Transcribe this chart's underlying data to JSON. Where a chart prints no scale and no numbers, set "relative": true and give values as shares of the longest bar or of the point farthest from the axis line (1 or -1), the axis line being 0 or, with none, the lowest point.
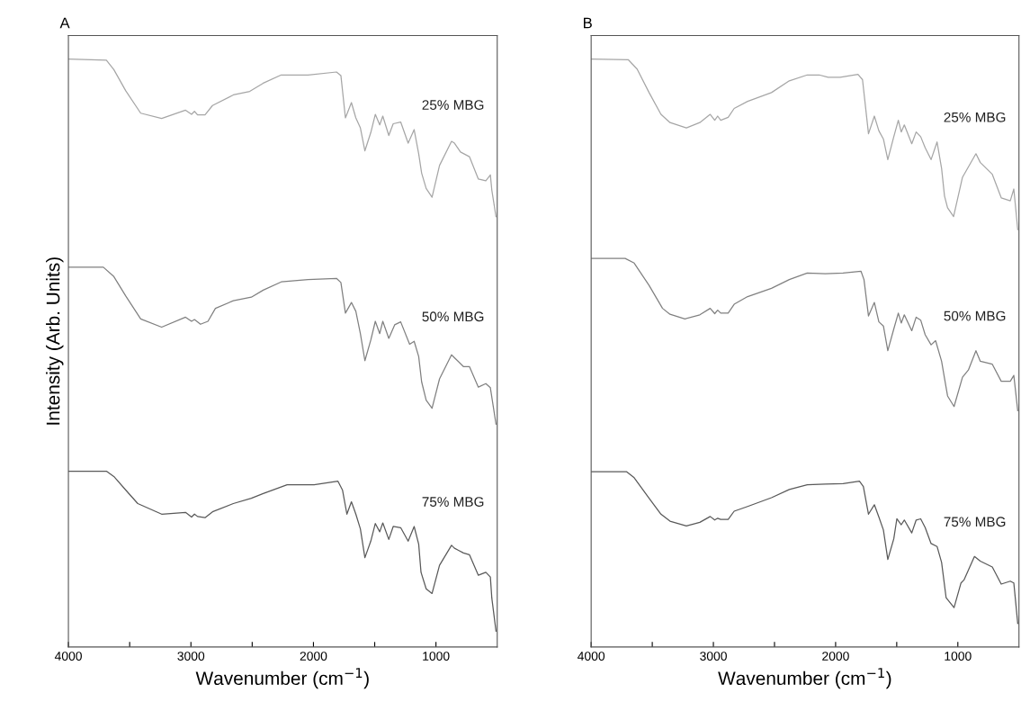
{
  "chart_data": [
    {
      "type": "line",
      "title": "A",
      "xlabel": "Wavenumber (cm$^{−1}$)",
      "ylabel": "Intensity (Arb. Units)",
      "relative": true,
      "tick_labels": "x",
      "xlim": [
        4000,
        500
      ],
      "xticks": [
        4000,
        {
          "value": 3500,
          "label": null
        },
        3000,
        {
          "value": 2500,
          "label": null
        },
        2000,
        {
          "value": 1500,
          "label": null
        },
        1000
      ],
      "series": [
        {
          "name": "25% MBG",
          "color": "#a6a6a6",
          "x": [
            4000,
            3690,
            3629,
            3532,
            3410,
            3239,
            3044,
            2995,
            2971,
            2946,
            2885,
            2824,
            2654,
            2520,
            2410,
            2263,
            2044,
            1812,
            1776,
            1739,
            1690,
            1654,
            1617,
            1580,
            1532,
            1495,
            1459,
            1434,
            1385,
            1349,
            1288,
            1227,
            1178,
            1141,
            1117,
            1080,
            1032,
            971,
            873,
            849,
            800,
            727,
            654,
            593,
            556,
            544,
            510
          ],
          "values": [
            1.0,
            0.998,
            0.982,
            0.946,
            0.908,
            0.899,
            0.913,
            0.906,
            0.911,
            0.905,
            0.905,
            0.921,
            0.939,
            0.945,
            0.959,
            0.973,
            0.973,
            0.978,
            0.972,
            0.9,
            0.926,
            0.9,
            0.883,
            0.844,
            0.875,
            0.906,
            0.888,
            0.903,
            0.87,
            0.89,
            0.893,
            0.857,
            0.88,
            0.839,
            0.806,
            0.78,
            0.765,
            0.819,
            0.86,
            0.857,
            0.842,
            0.834,
            0.796,
            0.793,
            0.803,
            0.777,
            0.732
          ]
        },
        {
          "name": "50% MBG",
          "color": "#808080",
          "x": [
            4000,
            3715,
            3629,
            3532,
            3410,
            3239,
            3044,
            2995,
            2971,
            2922,
            2861,
            2800,
            2654,
            2507,
            2410,
            2263,
            2044,
            1812,
            1776,
            1739,
            1690,
            1654,
            1617,
            1580,
            1532,
            1495,
            1459,
            1434,
            1385,
            1337,
            1288,
            1215,
            1178,
            1141,
            1117,
            1080,
            1032,
            971,
            873,
            849,
            776,
            727,
            654,
            593,
            556,
            510
          ],
          "values": [
            0.646,
            0.646,
            0.63,
            0.597,
            0.558,
            0.544,
            0.561,
            0.554,
            0.557,
            0.549,
            0.554,
            0.576,
            0.589,
            0.595,
            0.607,
            0.621,
            0.625,
            0.627,
            0.62,
            0.568,
            0.586,
            0.571,
            0.533,
            0.487,
            0.522,
            0.554,
            0.533,
            0.554,
            0.525,
            0.548,
            0.553,
            0.515,
            0.52,
            0.494,
            0.451,
            0.42,
            0.406,
            0.456,
            0.497,
            0.492,
            0.477,
            0.477,
            0.442,
            0.448,
            0.441,
            0.379
          ]
        },
        {
          "name": "75% MBG",
          "color": "#595959",
          "x": [
            4000,
            3690,
            3629,
            3532,
            3434,
            3239,
            3044,
            2995,
            2971,
            2946,
            2885,
            2824,
            2654,
            2507,
            2410,
            2215,
            1995,
            1800,
            1763,
            1727,
            1690,
            1654,
            1617,
            1580,
            1532,
            1495,
            1459,
            1434,
            1385,
            1349,
            1288,
            1227,
            1178,
            1141,
            1122,
            1080,
            1032,
            971,
            873,
            849,
            776,
            727,
            654,
            593,
            556,
            544,
            510
          ],
          "values": [
            0.299,
            0.299,
            0.29,
            0.267,
            0.244,
            0.226,
            0.229,
            0.221,
            0.226,
            0.222,
            0.22,
            0.23,
            0.244,
            0.253,
            0.261,
            0.276,
            0.276,
            0.282,
            0.267,
            0.226,
            0.247,
            0.226,
            0.201,
            0.152,
            0.18,
            0.21,
            0.196,
            0.211,
            0.183,
            0.205,
            0.203,
            0.18,
            0.205,
            0.175,
            0.127,
            0.099,
            0.091,
            0.139,
            0.173,
            0.168,
            0.16,
            0.157,
            0.122,
            0.127,
            0.119,
            0.083,
            0.027
          ]
        }
      ]
    },
    {
      "type": "line",
      "title": "B",
      "xlabel": "Wavenumber (cm$^{−1}$)",
      "relative": true,
      "tick_labels": "x",
      "xlim": [
        4000,
        500
      ],
      "xticks": [
        4000,
        {
          "value": 3500,
          "label": null
        },
        3000,
        {
          "value": 2500,
          "label": null
        },
        2000,
        {
          "value": 1500,
          "label": null
        },
        1000
      ],
      "series": [
        {
          "name": "25% MBG",
          "color": "#a6a6a6",
          "x": [
            4000,
            3697,
            3624,
            3526,
            3429,
            3355,
            3221,
            3111,
            3026,
            2989,
            2965,
            2940,
            2879,
            2830,
            2720,
            2525,
            2379,
            2232,
            2134,
            2061,
            1963,
            1817,
            1780,
            1731,
            1683,
            1646,
            1609,
            1573,
            1524,
            1487,
            1463,
            1438,
            1377,
            1341,
            1304,
            1267,
            1219,
            1170,
            1133,
            1109,
            1084,
            1035,
            962,
            852,
            816,
            718,
            645,
            571,
            542,
            510
          ],
          "values": [
            1.0,
            0.999,
            0.983,
            0.943,
            0.906,
            0.892,
            0.883,
            0.892,
            0.906,
            0.896,
            0.903,
            0.896,
            0.901,
            0.916,
            0.928,
            0.943,
            0.963,
            0.973,
            0.973,
            0.969,
            0.969,
            0.974,
            0.965,
            0.873,
            0.903,
            0.878,
            0.864,
            0.829,
            0.868,
            0.896,
            0.876,
            0.888,
            0.856,
            0.876,
            0.868,
            0.849,
            0.829,
            0.859,
            0.814,
            0.767,
            0.747,
            0.732,
            0.799,
            0.839,
            0.824,
            0.804,
            0.764,
            0.759,
            0.779,
            0.71
          ]
        },
        {
          "name": "50% MBG",
          "color": "#808080",
          "x": [
            4000,
            3722,
            3648,
            3526,
            3416,
            3355,
            3233,
            3111,
            3026,
            2989,
            2965,
            2940,
            2879,
            2830,
            2720,
            2525,
            2379,
            2232,
            2085,
            1939,
            1792,
            1768,
            1731,
            1683,
            1646,
            1609,
            1573,
            1524,
            1487,
            1463,
            1438,
            1377,
            1341,
            1304,
            1267,
            1219,
            1182,
            1133,
            1109,
            1084,
            1031,
            962,
            914,
            852,
            816,
            718,
            645,
            571,
            542,
            510
          ],
          "values": [
            0.661,
            0.661,
            0.653,
            0.615,
            0.576,
            0.566,
            0.558,
            0.565,
            0.576,
            0.567,
            0.573,
            0.568,
            0.568,
            0.583,
            0.596,
            0.61,
            0.625,
            0.636,
            0.635,
            0.636,
            0.639,
            0.625,
            0.563,
            0.586,
            0.553,
            0.546,
            0.504,
            0.541,
            0.568,
            0.551,
            0.565,
            0.538,
            0.561,
            0.556,
            0.531,
            0.514,
            0.521,
            0.486,
            0.457,
            0.427,
            0.409,
            0.459,
            0.471,
            0.504,
            0.486,
            0.481,
            0.452,
            0.452,
            0.462,
            0.402
          ]
        },
        {
          "name": "75% MBG",
          "color": "#595959",
          "x": [
            4000,
            3709,
            3648,
            3526,
            3429,
            3355,
            3221,
            3111,
            3026,
            2989,
            2965,
            2940,
            2879,
            2830,
            2720,
            2525,
            2379,
            2232,
            2085,
            1939,
            1805,
            1773,
            1731,
            1683,
            1646,
            1609,
            1573,
            1524,
            1499,
            1463,
            1438,
            1377,
            1341,
            1304,
            1267,
            1219,
            1170,
            1133,
            1096,
            1031,
            974,
            950,
            864,
            816,
            718,
            645,
            571,
            542,
            510
          ],
          "values": [
            0.298,
            0.298,
            0.288,
            0.253,
            0.226,
            0.214,
            0.206,
            0.212,
            0.222,
            0.216,
            0.219,
            0.217,
            0.217,
            0.231,
            0.239,
            0.254,
            0.268,
            0.276,
            0.277,
            0.278,
            0.282,
            0.273,
            0.226,
            0.242,
            0.221,
            0.199,
            0.149,
            0.184,
            0.218,
            0.208,
            0.216,
            0.194,
            0.216,
            0.218,
            0.203,
            0.176,
            0.171,
            0.144,
            0.084,
            0.067,
            0.109,
            0.114,
            0.154,
            0.146,
            0.136,
            0.107,
            0.112,
            0.109,
            0.04
          ]
        }
      ]
    }
  ]
}
